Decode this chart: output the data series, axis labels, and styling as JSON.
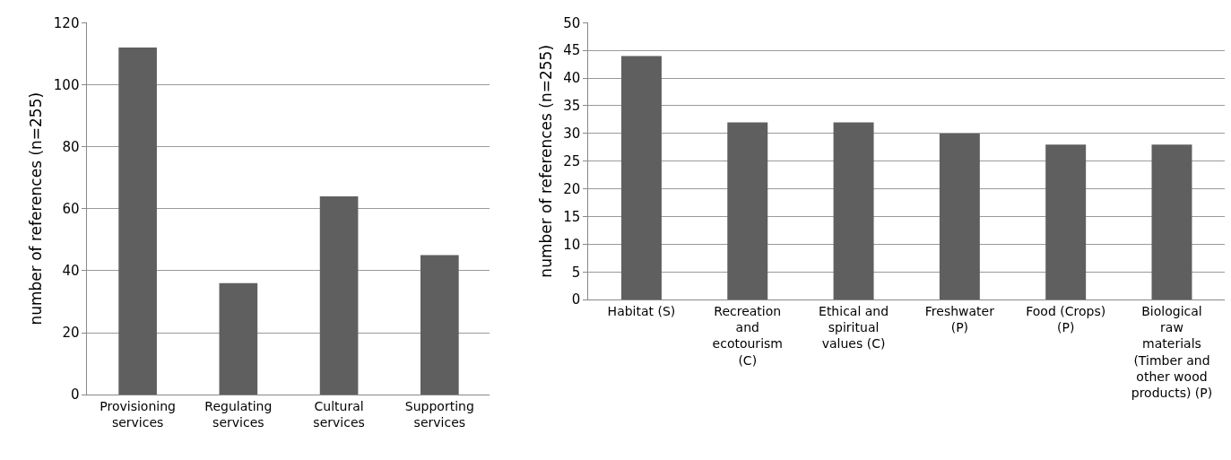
{
  "chart_data": [
    {
      "type": "bar",
      "ylabel": "number of references (n=255)",
      "categories": [
        "Provisioning\nservices",
        "Regulating\nservices",
        "Cultural\nservices",
        "Supporting\nservices"
      ],
      "values": [
        112,
        36,
        64,
        45
      ],
      "color": "#5f5f5f",
      "ylim": [
        0,
        120
      ],
      "yticks": [
        0,
        20,
        40,
        60,
        80,
        100,
        120
      ],
      "grid": "y"
    },
    {
      "type": "bar",
      "ylabel": "number of references (n=255)",
      "categories": [
        "Habitat (S)",
        "Recreation\nand\necotourism\n(C)",
        "Ethical and\nspiritual\nvalues (C)",
        "Freshwater\n(P)",
        "Food (Crops)\n(P)",
        "Biological\nraw\nmaterials\n(Timber and\nother wood\nproducts) (P)"
      ],
      "values": [
        44,
        32,
        32,
        30,
        28,
        28
      ],
      "color": "#5f5f5f",
      "ylim": [
        0,
        50
      ],
      "yticks": [
        0,
        5,
        10,
        15,
        20,
        25,
        30,
        35,
        40,
        45,
        50
      ],
      "grid": "y"
    }
  ]
}
